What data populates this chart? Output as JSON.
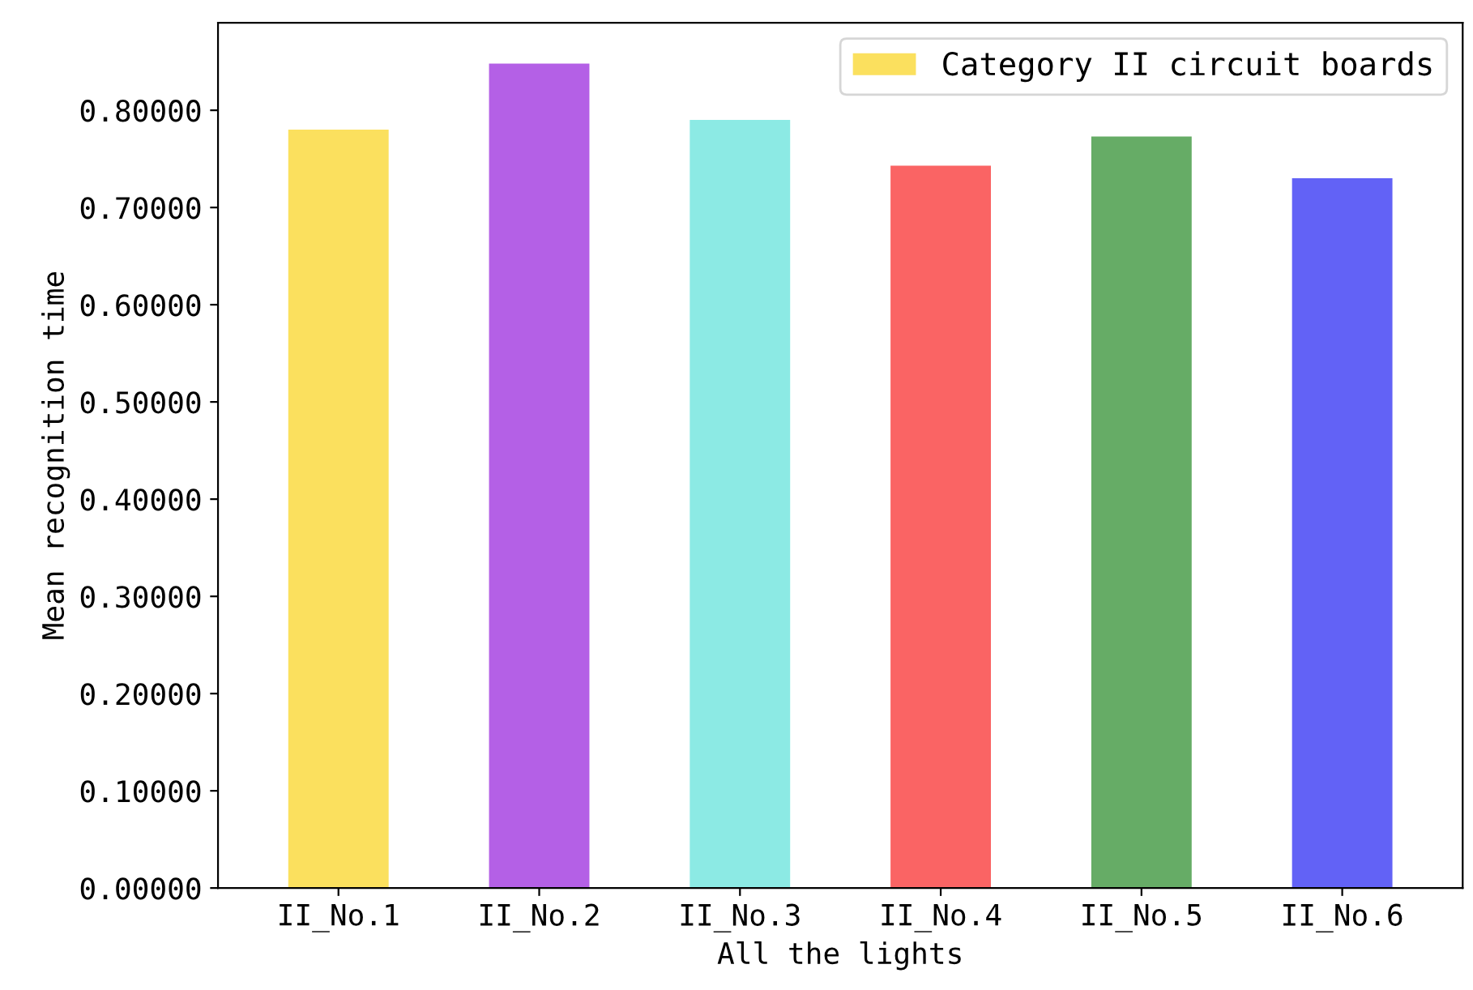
{
  "chart_data": {
    "type": "bar",
    "xlabel": "All the lights",
    "ylabel": "Mean recognition time",
    "categories": [
      "II_No.1",
      "II_No.2",
      "II_No.3",
      "II_No.4",
      "II_No.5",
      "II_No.6"
    ],
    "series": [
      {
        "name": "Category II circuit boards",
        "colors": [
          "#fbe05e",
          "#b460e6",
          "#8ceae4",
          "#fa6464",
          "#66ac66",
          "#6262f6"
        ],
        "values": [
          0.78,
          0.848,
          0.79,
          0.743,
          0.773,
          0.73
        ]
      }
    ],
    "ylim": [
      0,
      0.89
    ],
    "yticks": [
      {
        "value": 0,
        "label": "0.00000"
      },
      {
        "value": 0.1,
        "label": "0.10000"
      },
      {
        "value": 0.2,
        "label": "0.20000"
      },
      {
        "value": 0.3,
        "label": "0.30000"
      },
      {
        "value": 0.4,
        "label": "0.40000"
      },
      {
        "value": 0.5,
        "label": "0.50000"
      },
      {
        "value": 0.6,
        "label": "0.60000"
      },
      {
        "value": 0.7,
        "label": "0.70000"
      },
      {
        "value": 0.8,
        "label": "0.80000"
      }
    ],
    "grid": false,
    "legend": "top right"
  }
}
